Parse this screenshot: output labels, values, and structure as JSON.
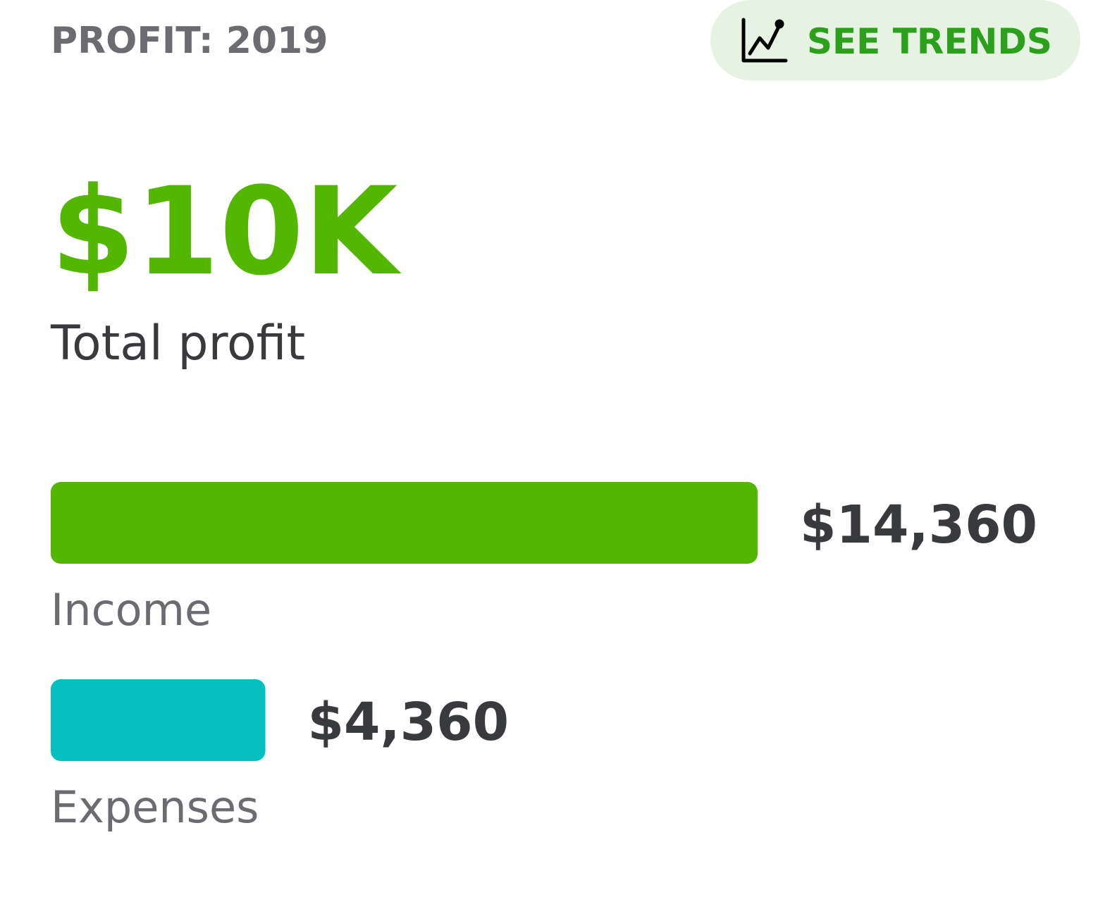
{
  "header": {
    "title": "PROFIT: 2019",
    "button": "SEE TRENDS"
  },
  "summary": {
    "total": "$10K",
    "label": "Total profit"
  },
  "chart_data": {
    "type": "bar",
    "orientation": "horizontal",
    "categories": [
      "Income",
      "Expenses"
    ],
    "values": [
      14360,
      4360
    ],
    "value_labels": [
      "$14,360",
      "$4,360"
    ],
    "colors": [
      "#53b700",
      "#07bfbf"
    ]
  }
}
